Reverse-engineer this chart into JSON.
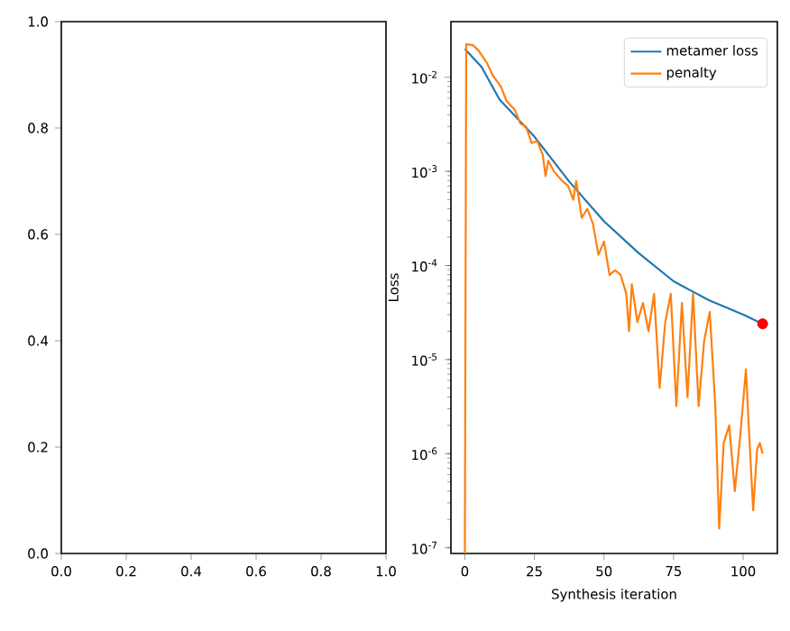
{
  "chart_data": [
    {
      "type": "line",
      "xlim": [
        0,
        1
      ],
      "ylim": [
        0,
        1
      ],
      "xticks": [
        {
          "value": 0,
          "label": "0.0"
        },
        {
          "value": 0.2,
          "label": "0.2"
        },
        {
          "value": 0.4,
          "label": "0.4"
        },
        {
          "value": 0.6,
          "label": "0.6"
        },
        {
          "value": 0.8,
          "label": "0.8"
        },
        {
          "value": 1,
          "label": "1.0"
        }
      ],
      "yticks": [
        {
          "value": 0,
          "label": "0.0"
        },
        {
          "value": 0.2,
          "label": "0.2"
        },
        {
          "value": 0.4,
          "label": "0.4"
        },
        {
          "value": 0.6,
          "label": "0.6"
        },
        {
          "value": 0.8,
          "label": "0.8"
        },
        {
          "value": 1,
          "label": "1.0"
        }
      ]
    },
    {
      "type": "line",
      "xlabel": "Synthesis iteration",
      "ylabel": "Loss",
      "log": "y",
      "grid": false,
      "legend": "top right",
      "xlim": [
        -5,
        112.3
      ],
      "ylim": [
        8.7e-08,
        0.039
      ],
      "xticks": [
        0,
        25,
        50,
        75,
        100
      ],
      "yticks": [
        {
          "value": 1e-07,
          "label": "10$^{-7}$"
        },
        {
          "value": 1e-06,
          "label": "10$^{-6}$"
        },
        {
          "value": 1e-05,
          "label": "10$^{-5}$"
        },
        {
          "value": 0.0001,
          "label": "10$^{-4}$"
        },
        {
          "value": 0.001,
          "label": "10$^{-3}$"
        },
        {
          "value": 0.01,
          "label": "10$^{-2}$"
        }
      ],
      "series": [
        {
          "name": "metamer loss",
          "color": "#1f77b4",
          "x": [
            0,
            6,
            12.5,
            25,
            37.5,
            50,
            62.5,
            75,
            87.5,
            100,
            107
          ],
          "values": [
            0.02,
            0.0129,
            0.0058,
            0.00234,
            0.00078,
            0.000295,
            0.000135,
            6.8e-05,
            4.3e-05,
            3e-05,
            2.4e-05
          ]
        },
        {
          "name": "penalty",
          "color": "#ff7f0e",
          "x": [
            0,
            0.5,
            3,
            5,
            8,
            10,
            13,
            15,
            18,
            20,
            22,
            24,
            26,
            28,
            29,
            30,
            32,
            35,
            37,
            39,
            40,
            42,
            44,
            46,
            48,
            50,
            52,
            54,
            56,
            58,
            59,
            60,
            62,
            64,
            66,
            68,
            70,
            72,
            74,
            76,
            78,
            80,
            82,
            84,
            86,
            88,
            90,
            91.4,
            93,
            95,
            97,
            99,
            101,
            102,
            103.6,
            105,
            106,
            107
          ],
          "values": [
            8.7e-08,
            0.0224,
            0.0219,
            0.0191,
            0.0141,
            0.0105,
            0.0079,
            0.0056,
            0.0045,
            0.0032,
            0.003,
            0.002,
            0.0021,
            0.0015,
            0.00089,
            0.0013,
            0.001,
            0.00079,
            0.00071,
            0.0005,
            0.00079,
            0.00032,
            0.0004,
            0.00028,
            0.00013,
            0.00018,
            7.9e-05,
            8.9e-05,
            7.9e-05,
            5e-05,
            2e-05,
            6.3e-05,
            2.5e-05,
            4e-05,
            2e-05,
            5e-05,
            5e-06,
            2.5e-05,
            5e-05,
            3.2e-06,
            4e-05,
            4e-06,
            5e-05,
            3.2e-06,
            1.6e-05,
            3.2e-05,
            3.2e-06,
            1.6e-07,
            1.3e-06,
            2e-06,
            4e-07,
            1.6e-06,
            7.9e-06,
            2e-06,
            2.5e-07,
            1.1e-06,
            1.3e-06,
            1e-06
          ]
        },
        {
          "type": "scatter",
          "color": "#ff0000",
          "x": [
            107
          ],
          "values": [
            2.4e-05
          ]
        }
      ]
    }
  ]
}
